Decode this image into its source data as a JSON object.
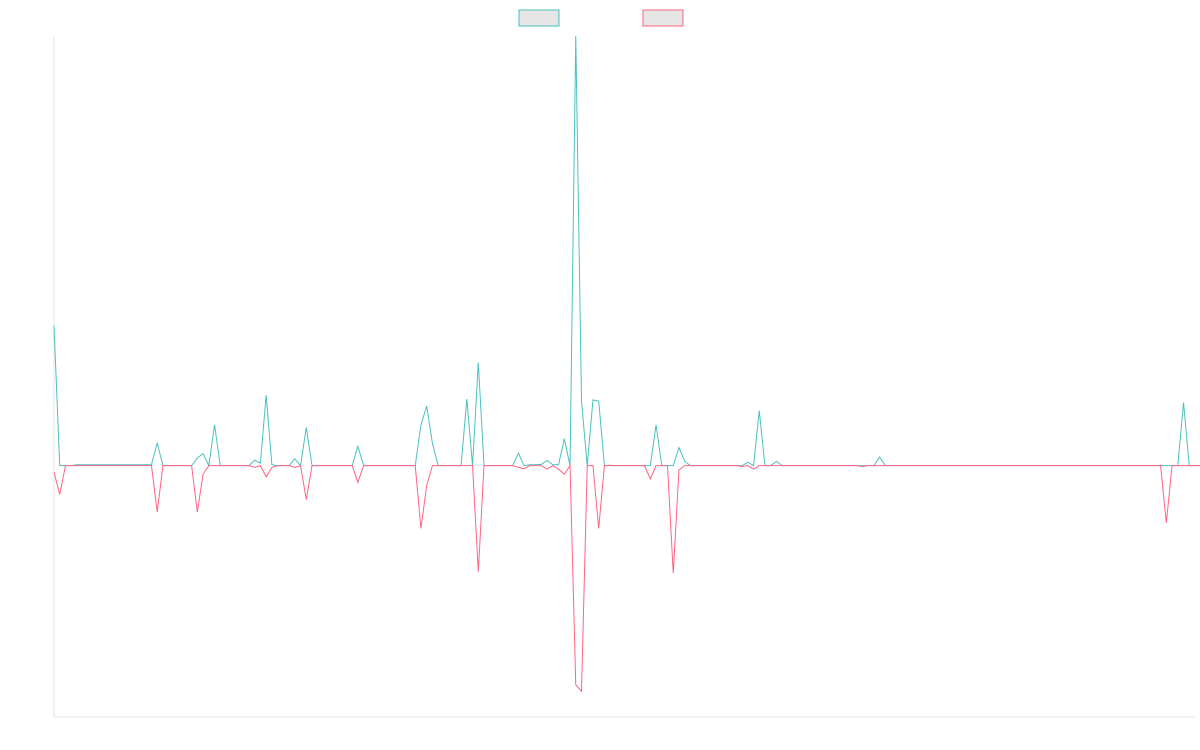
{
  "chart_data": {
    "type": "line",
    "title": "",
    "xlabel": "",
    "ylabel": "",
    "grid": false,
    "legend_position": "top-center",
    "xlim": [
      0,
      199
    ],
    "ylim": [
      -0.585,
      1.0
    ],
    "series": [
      {
        "color": "#4bc0c0",
        "fill": "#e6e6e6",
        "values": [
          0.326,
          0,
          0,
          0,
          0.002,
          0.002,
          0.002,
          0.002,
          0.002,
          0.002,
          0.002,
          0.002,
          0.002,
          0.002,
          0.002,
          0.002,
          0.002,
          0.002,
          0.053,
          0,
          0,
          0,
          0,
          0,
          0,
          0.018,
          0.028,
          0,
          0.095,
          0,
          0,
          0,
          0,
          0,
          0,
          0.013,
          0.006,
          0.164,
          0.002,
          0,
          0,
          0,
          0.016,
          0,
          0.089,
          0,
          0,
          0,
          0,
          0,
          0,
          0,
          0,
          0.045,
          0,
          0,
          0,
          0,
          0,
          0,
          0,
          0,
          0,
          0,
          0.095,
          0.139,
          0.052,
          0,
          0,
          0,
          0,
          0,
          0.155,
          0,
          0.24,
          0,
          0,
          0,
          0,
          0,
          0,
          0.029,
          0,
          0.002,
          0.002,
          0.003,
          0.012,
          0.002,
          0.002,
          0.063,
          0,
          1.0,
          0.15,
          0,
          0.153,
          0.15,
          0,
          0,
          0,
          0,
          0,
          0,
          0,
          0,
          0,
          0.095,
          0,
          0,
          0,
          0.042,
          0.01,
          0,
          0,
          0,
          0,
          0,
          0,
          0,
          0,
          0,
          0,
          0.008,
          0,
          0.128,
          0,
          0,
          0.01,
          0,
          0,
          0,
          0,
          0,
          0,
          0,
          0,
          0,
          0,
          0,
          0,
          0,
          0,
          0,
          0,
          0,
          0.02,
          0,
          0,
          0,
          0,
          0,
          0,
          0,
          0,
          0,
          0,
          0,
          0,
          0,
          0,
          0,
          0,
          0,
          0,
          0,
          0,
          0,
          0,
          0,
          0,
          0,
          0,
          0,
          0,
          0,
          0,
          0,
          0,
          0,
          0,
          0,
          0,
          0,
          0,
          0,
          0,
          0,
          0,
          0,
          0,
          0,
          0,
          0,
          0,
          0,
          0,
          0,
          0,
          0.147,
          0,
          0,
          0,
          0,
          0,
          0,
          0,
          0,
          0,
          0,
          0,
          0,
          0,
          0,
          0,
          0,
          0
        ]
      },
      {
        "color": "#ff6384",
        "fill": "#e6e6e6",
        "values": [
          -0.015,
          -0.067,
          0,
          0,
          0,
          0,
          0,
          0,
          0,
          0,
          0,
          0,
          0,
          0,
          0,
          0,
          0,
          0,
          -0.108,
          0,
          0,
          0,
          0,
          0,
          0,
          -0.108,
          -0.02,
          0,
          0,
          0,
          0,
          0,
          0,
          0,
          0,
          -0.004,
          0,
          -0.026,
          -0.004,
          0,
          0,
          0,
          -0.004,
          0,
          -0.079,
          0,
          0,
          0,
          0,
          0,
          0,
          0,
          0,
          -0.039,
          0,
          0,
          0,
          0,
          0,
          0,
          0,
          0,
          0,
          0,
          -0.146,
          -0.046,
          0,
          0,
          0,
          0,
          0,
          0,
          0,
          0,
          -0.247,
          0,
          0,
          0,
          0,
          0,
          0,
          -0.004,
          -0.007,
          0,
          0,
          0,
          -0.008,
          0,
          -0.008,
          -0.02,
          0,
          -0.51,
          -0.525,
          0,
          0,
          -0.146,
          0,
          0.001,
          0,
          0,
          0,
          0,
          0,
          0,
          -0.031,
          0,
          0,
          0,
          -0.25,
          -0.01,
          0,
          0,
          0,
          0,
          0,
          0,
          0,
          0,
          0,
          0,
          -0.002,
          0,
          -0.008,
          0,
          0,
          0,
          0,
          0,
          0,
          0,
          0,
          0,
          0,
          0,
          0,
          0,
          0,
          0,
          0,
          0,
          0,
          -0.002,
          0,
          0,
          0,
          0,
          0,
          0,
          0,
          0,
          0,
          0,
          0,
          0,
          0,
          0,
          0,
          0,
          0,
          0,
          0,
          0,
          0,
          0,
          0,
          0,
          0,
          0,
          0,
          0,
          0,
          0,
          0,
          0,
          0,
          0,
          0,
          0,
          0,
          0,
          0,
          0,
          0,
          0,
          0,
          0,
          0,
          0,
          0,
          0,
          0,
          0,
          0,
          0,
          -0.133,
          0,
          0,
          0,
          0,
          0,
          0,
          0,
          0,
          0,
          0,
          0,
          0,
          0,
          0,
          0,
          0,
          0
        ]
      }
    ]
  }
}
